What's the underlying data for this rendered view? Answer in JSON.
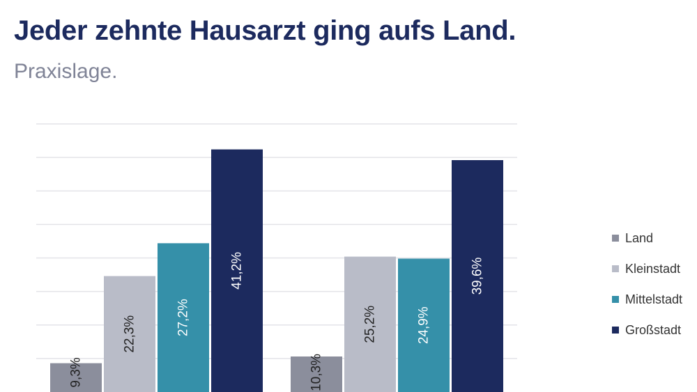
{
  "header": {
    "title": "Jeder zehnte Hausarzt ging aufs Land.",
    "subtitle": "Praxislage."
  },
  "chart_data": {
    "type": "bar",
    "title": "Jeder zehnte Hausarzt ging aufs Land.",
    "subtitle": "Praxislage.",
    "categories": [
      "",
      ""
    ],
    "series": [
      {
        "name": "Land",
        "values": [
          9.3,
          10.3
        ],
        "labels": [
          "9,3%",
          "10,3%"
        ],
        "color": "#8b8e9c"
      },
      {
        "name": "Kleinstadt",
        "values": [
          22.3,
          25.2
        ],
        "labels": [
          "22,3%",
          "25,2%"
        ],
        "color": "#b9bcc8"
      },
      {
        "name": "Mittelstadt",
        "values": [
          27.2,
          24.9
        ],
        "labels": [
          "27,2%",
          "24,9%"
        ],
        "color": "#3590a9"
      },
      {
        "name": "Großstadt",
        "values": [
          41.2,
          39.6
        ],
        "labels": [
          "41,2%",
          "39,6%"
        ],
        "color": "#1c2a5e"
      }
    ],
    "ylim": [
      5,
      45
    ],
    "grid": true,
    "legend": "right",
    "xlabel": "",
    "ylabel": ""
  }
}
